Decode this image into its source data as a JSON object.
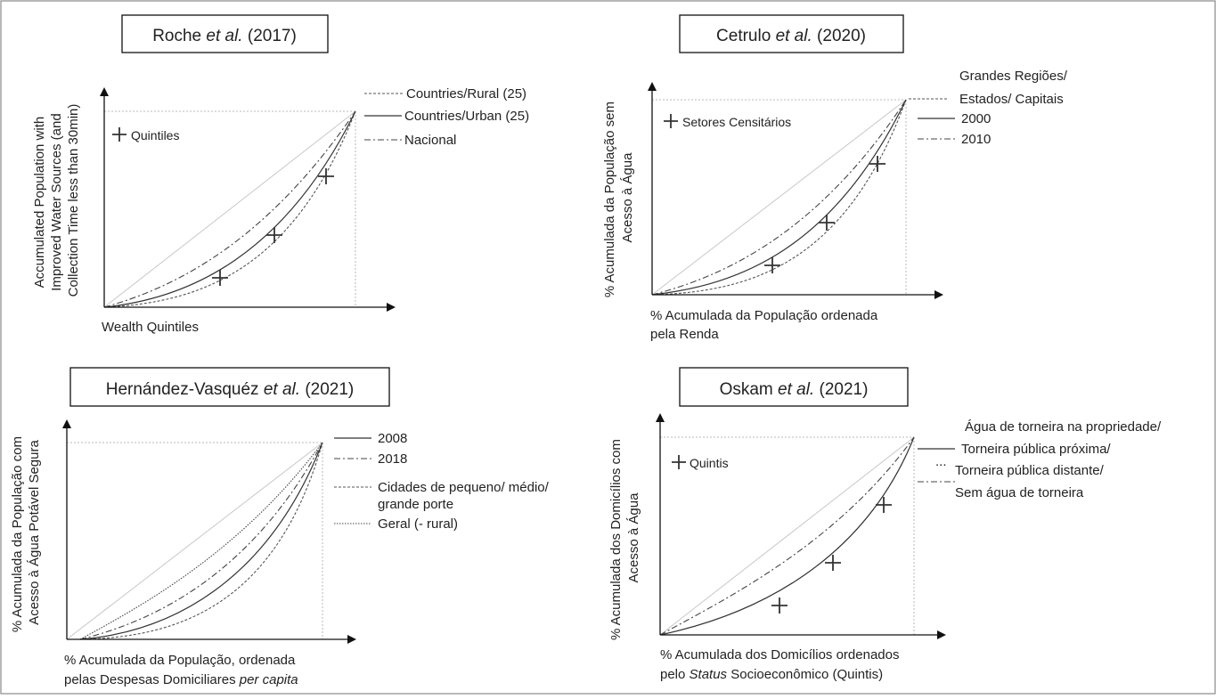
{
  "panels": {
    "roche": {
      "title_prefix": "Roche ",
      "title_italic": "et al.",
      "title_suffix": " (2017)",
      "ylabel_lines": [
        "Accumulated Population with",
        "Improved Water Sources (and",
        "Collection Time less than 30min)"
      ],
      "xlabel_lines": [
        "Wealth Quintiles"
      ],
      "marker_label": "Quintiles",
      "legend": [
        "Countries/Rural (25)",
        "Countries/Urban (25)",
        "Nacional"
      ]
    },
    "cetrulo": {
      "title_prefix": "Cetrulo ",
      "title_italic": "et al.",
      "title_suffix": " (2020)",
      "ylabel_lines": [
        "% Acumulada da População sem",
        "Acesso à Água"
      ],
      "xlabel_lines": [
        "% Acumulada da População ordenada",
        "pela Renda"
      ],
      "marker_label": "Setores Censitários",
      "legend": [
        "Grandes Regiões/",
        "Estados/ Capitais",
        "2000",
        "2010"
      ]
    },
    "hernandez": {
      "title_prefix": "Hernández-Vasquéz ",
      "title_italic": "et al.",
      "title_suffix": " (2021)",
      "ylabel_lines": [
        "% Acumulada da População com",
        "Acesso à Água Potável Segura"
      ],
      "xlabel_line1": "% Acumulada da População, ordenada",
      "xlabel_line2_prefix": "pelas Despesas Domiciliares ",
      "xlabel_line2_italic": "per capita",
      "legend": [
        "2008",
        "2018",
        "Cidades de pequeno/ médio/",
        "grande porte",
        "Geral (- rural)"
      ]
    },
    "oskam": {
      "title_prefix": "Oskam ",
      "title_italic": "et al.",
      "title_suffix": " (2021)",
      "ylabel_lines": [
        "% Acumulada dos Domicílios com",
        "Acesso à Água"
      ],
      "xlabel_line1": "% Acumulada dos Domicílios ordenados",
      "xlabel_line2_prefix": "pelo ",
      "xlabel_line2_italic": "Status",
      "xlabel_line2_suffix": " Socioeconômico (Quintis)",
      "marker_label": "Quintis",
      "legend": [
        "Água de torneira na propriedade/",
        "Torneira pública próxima/",
        "...",
        "Torneira pública distante/",
        "Sem água de torneira"
      ]
    }
  },
  "colors": {
    "axis": "#111111",
    "equality": "#c8c8c8",
    "curve": "#333333"
  }
}
